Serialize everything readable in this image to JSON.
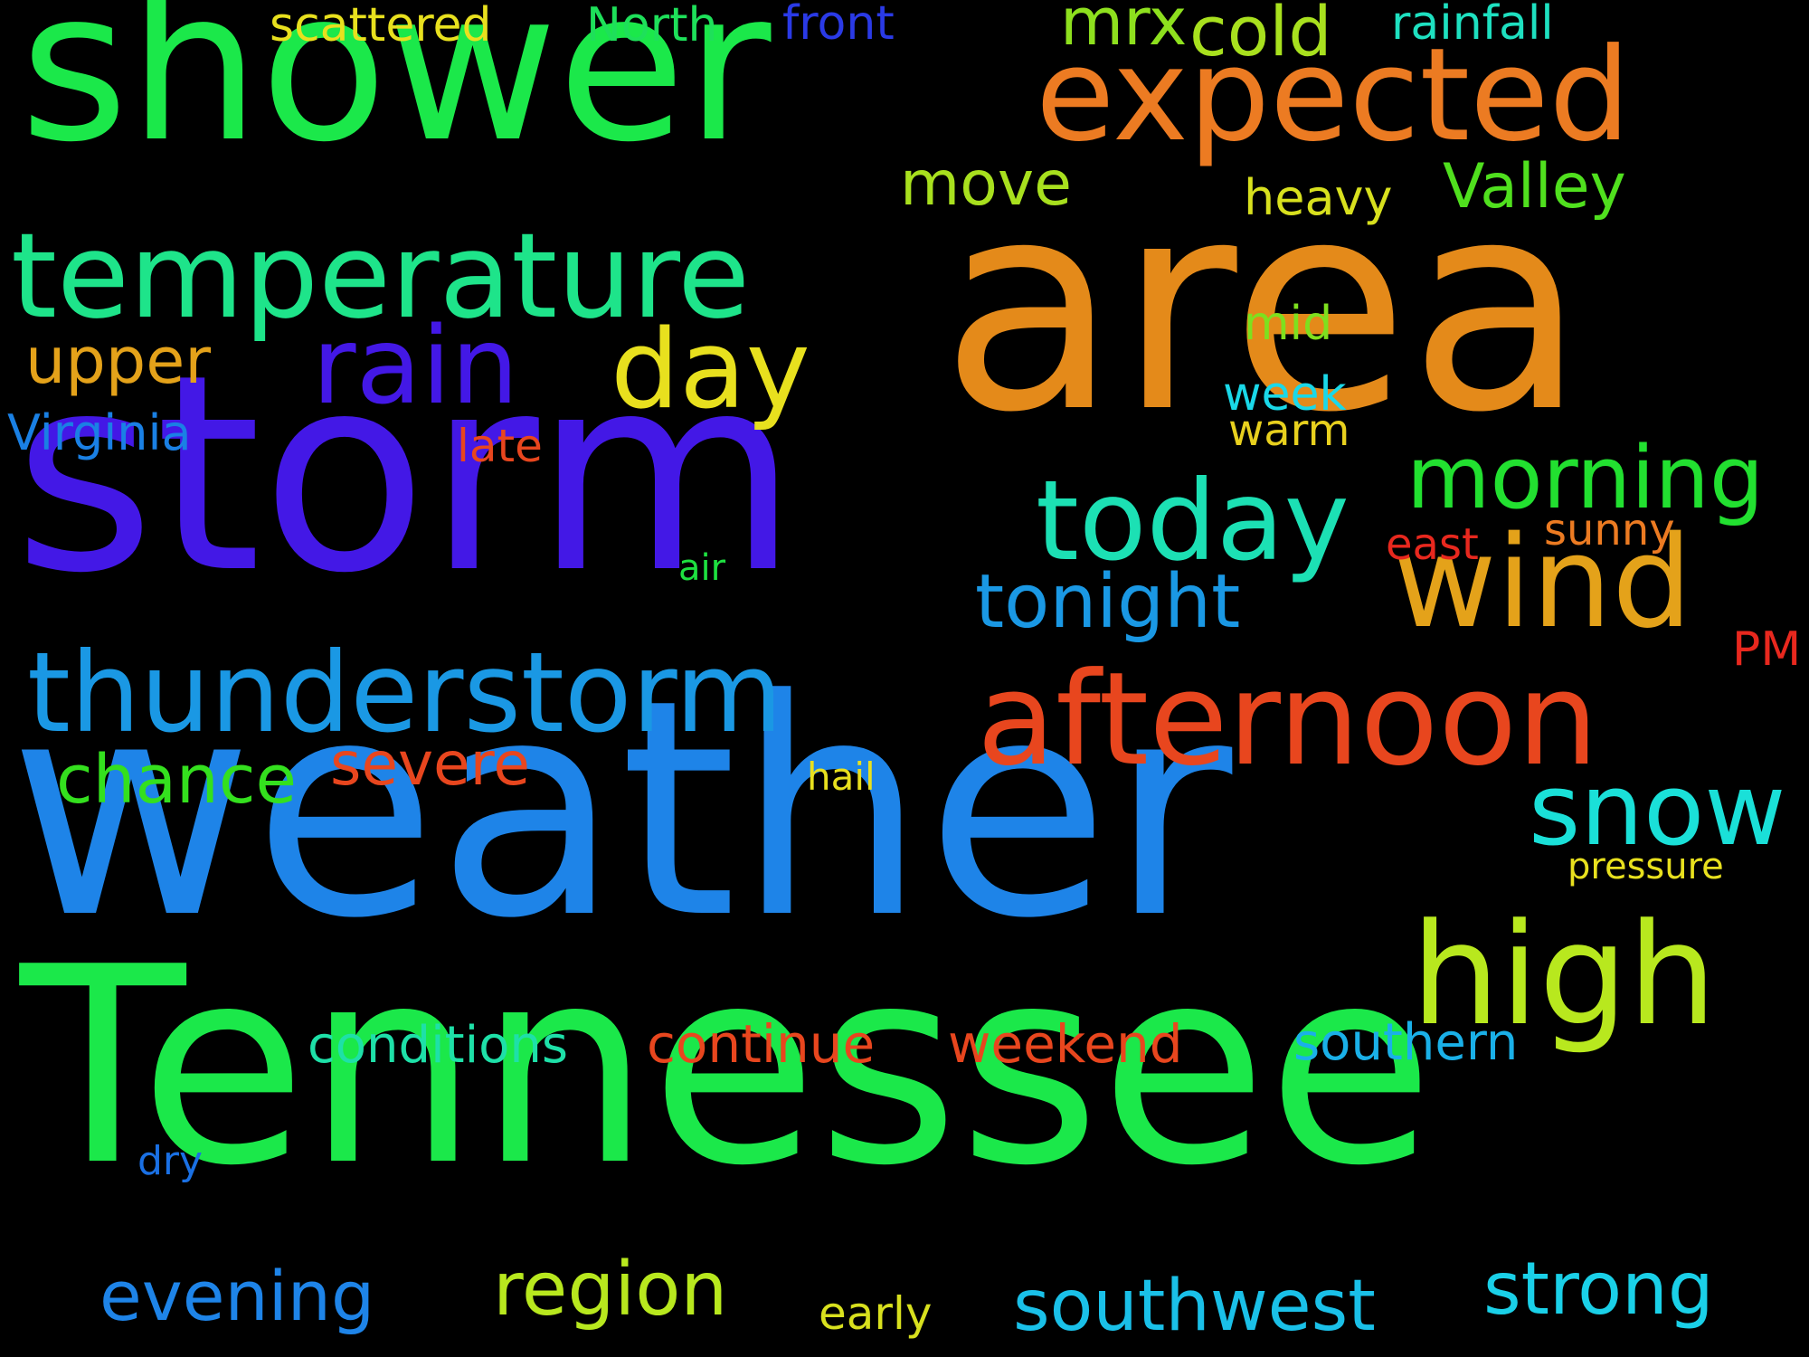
{
  "background_color": "#000000",
  "words": [
    {
      "text": "weather",
      "color": "#1e84e8"
    },
    {
      "text": "Tennessee",
      "color": "#1be84a"
    },
    {
      "text": "storm",
      "color": "#4318e6"
    },
    {
      "text": "area",
      "color": "#e48a1a"
    },
    {
      "text": "shower",
      "color": "#1be84a"
    },
    {
      "text": "temperature",
      "color": "#1ee48a"
    },
    {
      "text": "expected",
      "color": "#ec7b22"
    },
    {
      "text": "thunderstorm",
      "color": "#1a98e4"
    },
    {
      "text": "afternoon",
      "color": "#e8461e"
    },
    {
      "text": "wind",
      "color": "#e4a21a"
    },
    {
      "text": "today",
      "color": "#1ce0b4"
    },
    {
      "text": "high",
      "color": "#b8e81e"
    },
    {
      "text": "rain",
      "color": "#4318e6"
    },
    {
      "text": "day",
      "color": "#e8e01e"
    },
    {
      "text": "morning",
      "color": "#22e030"
    },
    {
      "text": "snow",
      "color": "#1ae0d8"
    },
    {
      "text": "tonight",
      "color": "#1a98e4"
    },
    {
      "text": "region",
      "color": "#b8e81e"
    },
    {
      "text": "southwest",
      "color": "#1ac0e8"
    },
    {
      "text": "strong",
      "color": "#1ad0e8"
    },
    {
      "text": "evening",
      "color": "#1e84e8"
    },
    {
      "text": "chance",
      "color": "#34e01e"
    },
    {
      "text": "severe",
      "color": "#e8461e"
    },
    {
      "text": "conditions",
      "color": "#1ee0a8"
    },
    {
      "text": "continue",
      "color": "#e8461e"
    },
    {
      "text": "weekend",
      "color": "#e8461e"
    },
    {
      "text": "southern",
      "color": "#1ab0e8"
    },
    {
      "text": "upper",
      "color": "#e4a21a"
    },
    {
      "text": "move",
      "color": "#a8e01e"
    },
    {
      "text": "Valley",
      "color": "#50e01e"
    },
    {
      "text": "cold",
      "color": "#a8e01e"
    },
    {
      "text": "mrx",
      "color": "#8ee01e"
    },
    {
      "text": "rainfall",
      "color": "#1ee0c0"
    },
    {
      "text": "scattered",
      "color": "#e8e01e"
    },
    {
      "text": "North",
      "color": "#1ee05a"
    },
    {
      "text": "front",
      "color": "#2a3ae6"
    },
    {
      "text": "heavy",
      "color": "#d8e01e"
    },
    {
      "text": "mid",
      "color": "#7ee01e"
    },
    {
      "text": "week",
      "color": "#1ad8e8"
    },
    {
      "text": "warm",
      "color": "#e8d01e"
    },
    {
      "text": "Virginia",
      "color": "#1a80e4"
    },
    {
      "text": "late",
      "color": "#e8461e"
    },
    {
      "text": "east",
      "color": "#e8281e"
    },
    {
      "text": "sunny",
      "color": "#ec7b22"
    },
    {
      "text": "PM",
      "color": "#e8281e"
    },
    {
      "text": "air",
      "color": "#1ee040"
    },
    {
      "text": "hail",
      "color": "#e8e01e"
    },
    {
      "text": "pressure",
      "color": "#e8e01e"
    },
    {
      "text": "dry",
      "color": "#1a70e4"
    },
    {
      "text": "early",
      "color": "#d8e01e"
    }
  ]
}
